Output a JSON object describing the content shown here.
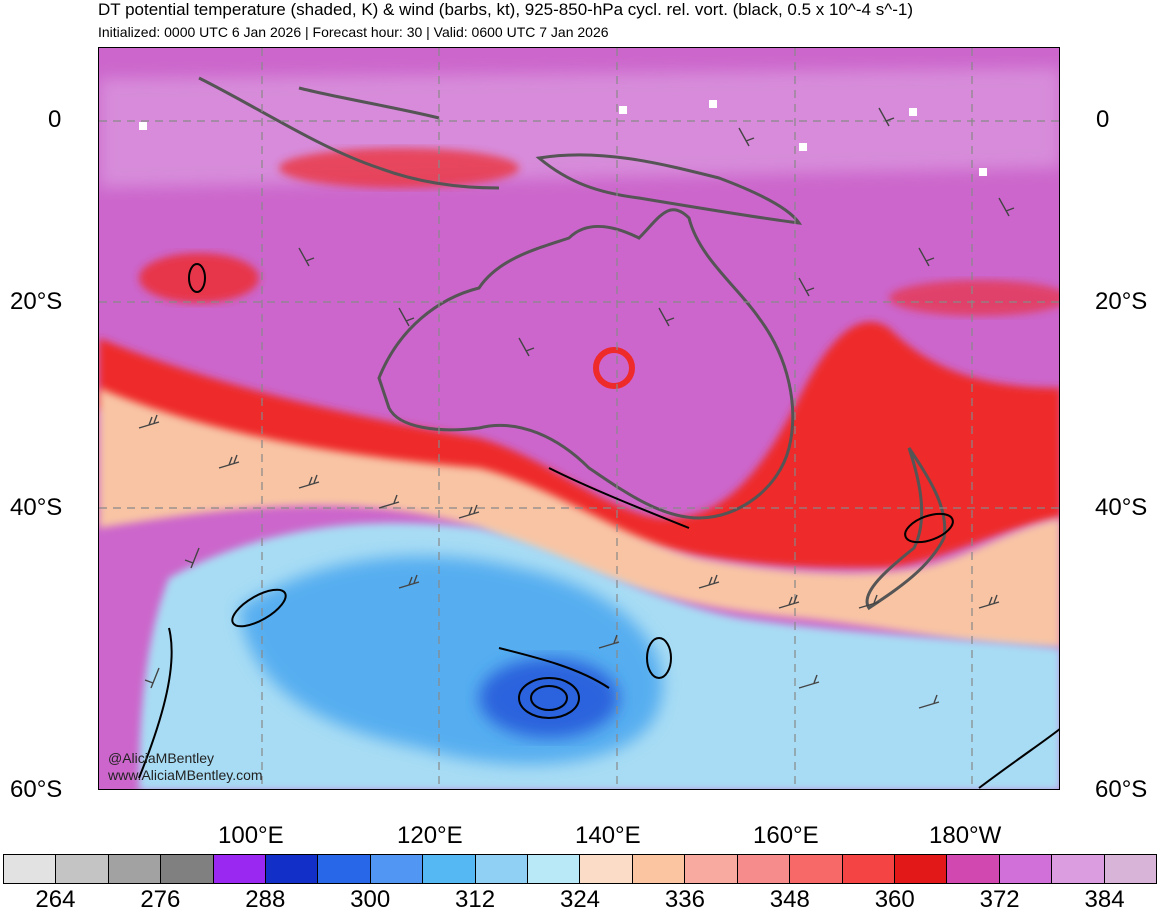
{
  "header": {
    "title": "DT potential temperature (shaded, K) & wind (barbs, kt), 925-850-hPa cycl. rel. vort. (black, 0.5 x 10^-4 s^-1)",
    "subtitle": "Initialized: 0000 UTC 6 Jan 2026 | Forecast hour: 30 | Valid: 0600 UTC 7 Jan 2026"
  },
  "map": {
    "lat_labels": [
      "0",
      "20°S",
      "40°S",
      "60°S"
    ],
    "lon_labels": [
      "100°E",
      "120°E",
      "140°E",
      "160°E",
      "180°W"
    ],
    "credit": [
      "@AliciaMBentley",
      "www.AliciaMBentley.com"
    ],
    "colors": {
      "purple_warm": "#cc66cc",
      "red_front": "#ee2020",
      "peach": "#f8c8a8",
      "light_blue": "#a8dcf4",
      "mid_blue": "#4da6ee",
      "deep_blue": "#2060dd",
      "coastline": "#555555"
    }
  },
  "colorbar": {
    "colors": [
      "#e2e2e2",
      "#c4c4c4",
      "#a2a2a2",
      "#808080",
      "#9a28f0",
      "#1230c8",
      "#2868e8",
      "#5096f2",
      "#56b8f2",
      "#8fd0f4",
      "#b9e8f6",
      "#fbdcc6",
      "#fbc5a2",
      "#f9aaa0",
      "#f78c8c",
      "#f76868",
      "#f44444",
      "#e21818",
      "#d048b0",
      "#d070d8",
      "#dc9ce0",
      "#d8b4d8"
    ],
    "labels": [
      "264",
      "276",
      "288",
      "300",
      "312",
      "324",
      "336",
      "348",
      "360",
      "372",
      "384"
    ]
  }
}
